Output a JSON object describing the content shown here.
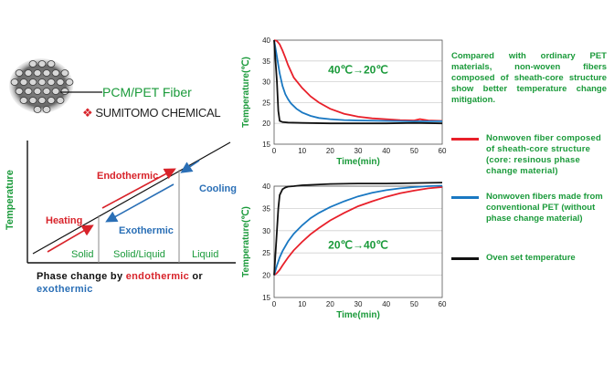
{
  "fiber": {
    "label": "PCM/PET Fiber",
    "brand": "SUMITOMO CHEMICAL"
  },
  "phase_diagram": {
    "ylabel": "Temperature",
    "endothermic": "Endothermic",
    "heating": "Heating",
    "exothermic": "Exothermic",
    "cooling": "Cooling",
    "solid": "Solid",
    "solid_liquid": "Solid/Liquid",
    "liquid": "Liquid",
    "caption_prefix": "Phase change by ",
    "caption_endo": "endothermic",
    "caption_or": " or",
    "caption_exo": "exothermic",
    "colors": {
      "red": "#d8232a",
      "blue": "#2a6fb6",
      "green": "#1a9a3a"
    }
  },
  "description": "Compared with ordinary PET materials, non-woven fibers composed of sheath-core structure show better temperature change mitigation.",
  "legend": {
    "red": "Nonwoven fiber composed of sheath-core structure (core: resinous phase change material)",
    "blue": "Nonwoven fibers made from conventional PET (without phase change material)",
    "black": "Oven set temperature"
  },
  "chart_data": [
    {
      "type": "line",
      "annotation": "40℃→20℃",
      "xlabel": "Time(min)",
      "ylabel": "Temperature(℃)",
      "xlim": [
        0,
        60
      ],
      "ylim": [
        15,
        40
      ],
      "xticks": [
        0,
        10,
        20,
        30,
        40,
        50,
        60
      ],
      "yticks": [
        15,
        20,
        25,
        30,
        35,
        40
      ],
      "series": [
        {
          "color": "#e8202a",
          "x": [
            0,
            1,
            2,
            3,
            4,
            5,
            7,
            10,
            13,
            16,
            20,
            25,
            30,
            35,
            40,
            45,
            50,
            52,
            55,
            60
          ],
          "y": [
            40,
            39.8,
            39,
            37.5,
            35.8,
            34,
            31,
            28.5,
            26.5,
            25,
            23.5,
            22.3,
            21.6,
            21.2,
            21,
            20.8,
            20.7,
            21,
            20.7,
            20.6
          ]
        },
        {
          "color": "#1a78c2",
          "x": [
            0,
            1,
            2,
            3,
            4,
            5,
            6,
            8,
            10,
            13,
            16,
            20,
            25,
            30,
            40,
            50,
            60
          ],
          "y": [
            40,
            36,
            32,
            29,
            27,
            25.8,
            24.8,
            23.5,
            22.6,
            21.8,
            21.3,
            21,
            20.8,
            20.7,
            20.6,
            20.5,
            20.5
          ]
        },
        {
          "color": "#111111",
          "x": [
            0,
            1,
            1.5,
            2,
            3,
            5,
            10,
            20,
            30,
            40,
            50,
            60
          ],
          "y": [
            40,
            30,
            23,
            20.6,
            20.3,
            20.2,
            20.1,
            20,
            20,
            20,
            20.1,
            20
          ]
        }
      ]
    },
    {
      "type": "line",
      "annotation": "20℃→40℃",
      "xlabel": "Time(min)",
      "ylabel": "Temperature(℃)",
      "xlim": [
        0,
        60
      ],
      "ylim": [
        15,
        40
      ],
      "xticks": [
        0,
        10,
        20,
        30,
        40,
        50,
        60
      ],
      "yticks": [
        15,
        20,
        25,
        30,
        35,
        40
      ],
      "series": [
        {
          "color": "#e8202a",
          "x": [
            0,
            1,
            2,
            3,
            5,
            7,
            10,
            13,
            16,
            20,
            25,
            30,
            35,
            40,
            45,
            50,
            55,
            60
          ],
          "y": [
            20,
            20.5,
            21.2,
            22.2,
            24,
            25.6,
            27.5,
            29.2,
            30.6,
            32.3,
            34,
            35.5,
            36.6,
            37.6,
            38.4,
            39,
            39.5,
            39.8
          ]
        },
        {
          "color": "#1a78c2",
          "x": [
            0,
            1,
            2,
            3,
            5,
            7,
            10,
            13,
            16,
            20,
            25,
            30,
            35,
            40,
            45,
            50,
            55,
            60
          ],
          "y": [
            20,
            22.2,
            24,
            25.4,
            27.6,
            29.3,
            31.2,
            32.8,
            34,
            35.3,
            36.6,
            37.7,
            38.5,
            39.1,
            39.5,
            39.8,
            40,
            40.1
          ]
        },
        {
          "color": "#111111",
          "x": [
            0,
            0.8,
            1.5,
            2,
            3,
            4,
            5,
            7,
            10,
            20,
            30,
            40,
            50,
            60
          ],
          "y": [
            20,
            28,
            35,
            38,
            39.3,
            39.7,
            39.9,
            40,
            40.2,
            40.5,
            40.6,
            40.6,
            40.7,
            40.8
          ]
        }
      ]
    }
  ]
}
